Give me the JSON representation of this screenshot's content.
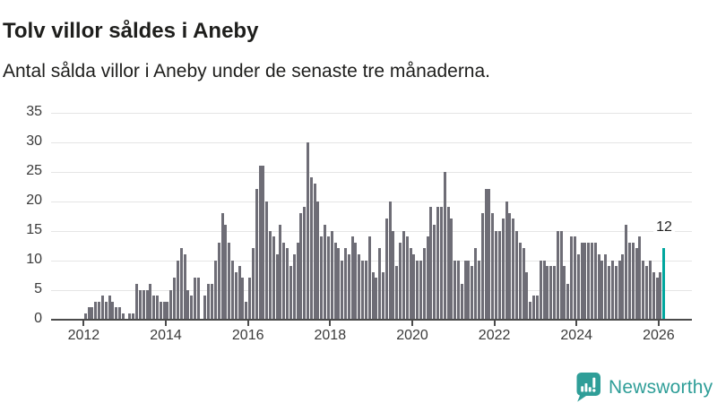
{
  "header": {
    "title": "Tolv villor såldes i Aneby",
    "subtitle": "Antal sålda villor i Aneby under de senaste tre månaderna."
  },
  "chart_data": {
    "type": "bar",
    "title": "Tolv villor såldes i Aneby",
    "subtitle": "Antal sålda villor i Aneby under de senaste tre månaderna.",
    "x_start": "2012-01",
    "x_end": "2026-02",
    "x_tick_labels": [
      "2012",
      "2014",
      "2016",
      "2018",
      "2020",
      "2022",
      "2024",
      "2026"
    ],
    "y_ticks": [
      0,
      5,
      10,
      15,
      20,
      25,
      30,
      35
    ],
    "ylim": [
      0,
      35
    ],
    "grid": true,
    "values": [
      1,
      2,
      2,
      3,
      3,
      4,
      3,
      4,
      3,
      2,
      2,
      1,
      0,
      1,
      1,
      6,
      5,
      5,
      5,
      6,
      4,
      4,
      3,
      3,
      3,
      5,
      7,
      10,
      12,
      11,
      5,
      4,
      7,
      7,
      0,
      4,
      6,
      6,
      10,
      13,
      18,
      16,
      13,
      10,
      8,
      9,
      7,
      3,
      7,
      12,
      22,
      26,
      26,
      20,
      15,
      14,
      11,
      16,
      13,
      12,
      9,
      11,
      13,
      18,
      19,
      30,
      24,
      23,
      20,
      14,
      16,
      14,
      15,
      13,
      12,
      10,
      12,
      11,
      14,
      13,
      11,
      10,
      10,
      14,
      8,
      7,
      12,
      8,
      17,
      20,
      15,
      9,
      13,
      15,
      14,
      12,
      11,
      10,
      10,
      12,
      14,
      19,
      16,
      19,
      19,
      25,
      19,
      17,
      10,
      10,
      6,
      10,
      10,
      9,
      12,
      10,
      18,
      22,
      22,
      18,
      15,
      15,
      17,
      20,
      18,
      17,
      15,
      13,
      12,
      8,
      3,
      4,
      4,
      10,
      10,
      9,
      9,
      9,
      15,
      15,
      9,
      6,
      14,
      14,
      11,
      13,
      13,
      13,
      13,
      13,
      11,
      10,
      11,
      9,
      10,
      9,
      10,
      11,
      16,
      13,
      13,
      12,
      14,
      10,
      9,
      10,
      8,
      7,
      8,
      12
    ],
    "highlight_last": true,
    "annotation": {
      "text": "12"
    }
  },
  "colors": {
    "bar": "#6e6d76",
    "highlight": "#00a69e",
    "grid": "#e5e5e5",
    "axis": "#4b4b4b",
    "text": "#1e1e1c",
    "tick_label": "#3a3a3a",
    "brand": "#2f9e98"
  },
  "branding": {
    "logo_text": "Newsworthy",
    "logo_icon": "bar-chart-speech-bubble-icon"
  }
}
